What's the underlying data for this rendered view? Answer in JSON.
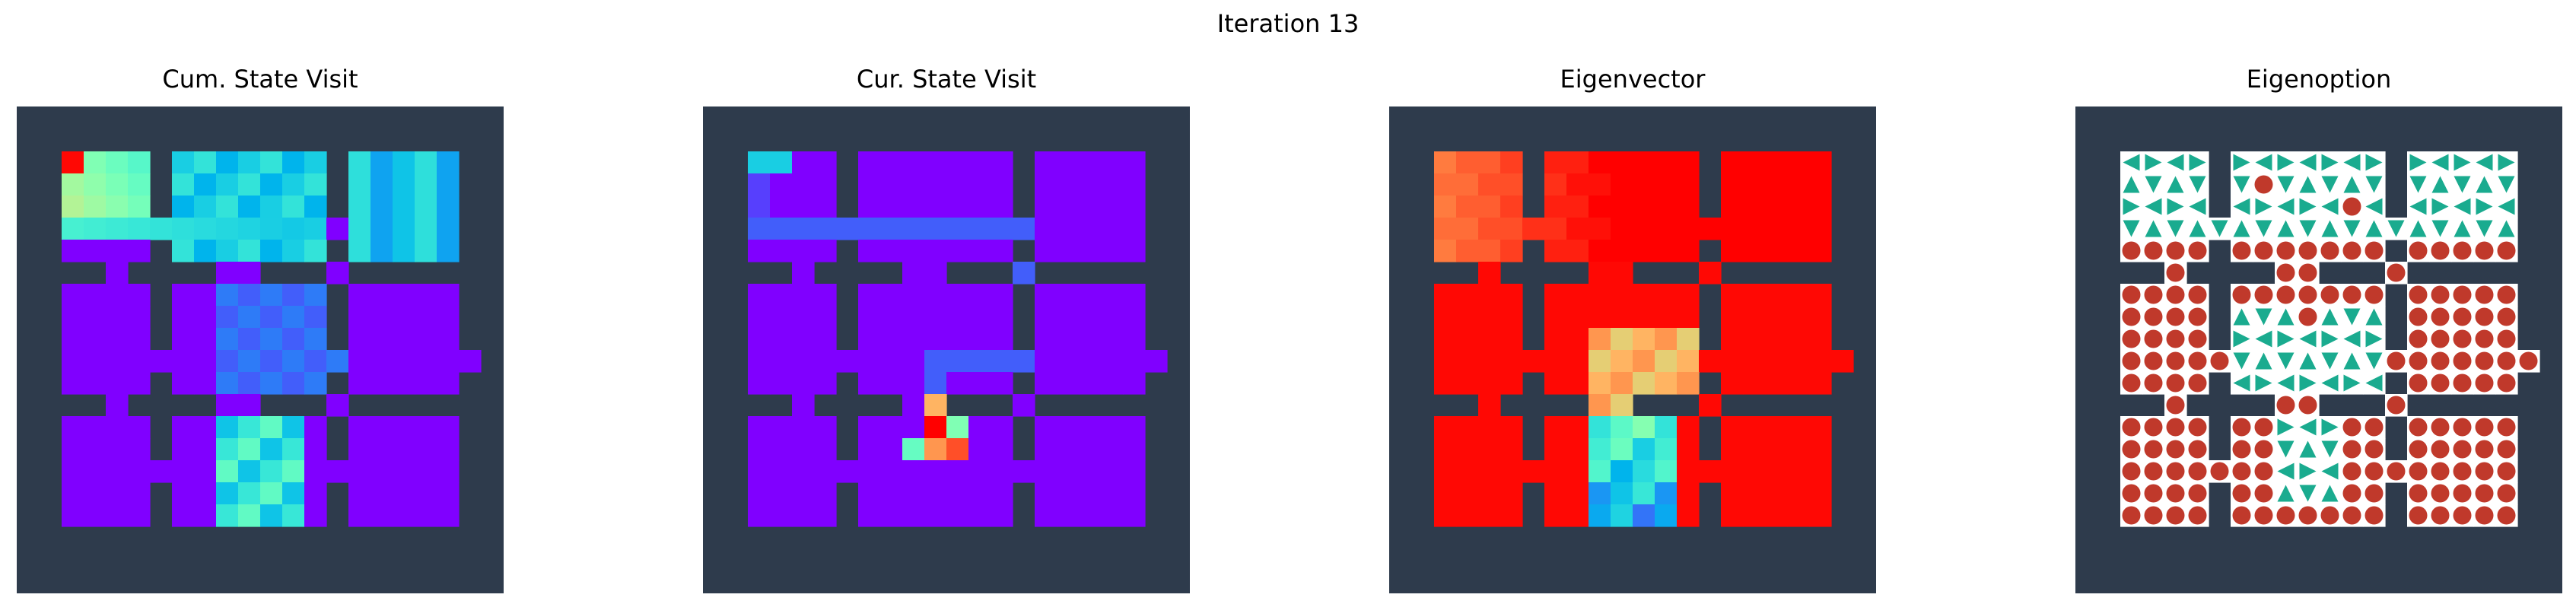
{
  "figure": {
    "suptitle": "Iteration 13",
    "wall_color": "#2e3b4c",
    "panels": [
      {
        "title": "Cum. State Visit",
        "kind": "heatmap",
        "key": "cum"
      },
      {
        "title": "Cur. State Visit",
        "kind": "heatmap",
        "key": "cur"
      },
      {
        "title": "Eigenvector",
        "kind": "eigvec",
        "key": "eig"
      },
      {
        "title": "Eigenoption",
        "kind": "option",
        "key": "opt"
      }
    ],
    "option_colors": {
      "arrow": "#1aab8f",
      "terminate": "#c0392b",
      "background": "#ffffff"
    }
  },
  "chart_data": {
    "type": "heatmap",
    "grid_size": [
      20,
      20
    ],
    "colormap": "rainbow",
    "legend": "i,j encoded as row strings; '#' = wall, '.' = open cell",
    "maze": [
      "####################",
      "#....#.......#.....#",
      "#....#.......#.....#",
      "#....#.......#.....#",
      "#..................#",
      "#....#.......#.....#",
      "###.####..###.######",
      "#....#.......#.....#",
      "#....#.......#.....#",
      "#....#.......#.....#",
      "#...................",
      "#....#.......#.....#",
      "###.####..###.######",
      "#....#.......#.....#",
      "#....#.......#.....#",
      "#..................#",
      "#....#.......#.....#",
      "#....#.......#.....#",
      "####################",
      "####################"
    ],
    "cum_visits_hot_cells": [
      {
        "r": 1,
        "c": 1,
        "v": 1.0
      },
      {
        "r": 1,
        "c": 2,
        "v": 0.45
      },
      {
        "r": 1,
        "c": 3,
        "v": 0.35
      },
      {
        "r": 1,
        "c": 4,
        "v": 0.3
      },
      {
        "r": 2,
        "c": 1,
        "v": 0.65
      },
      {
        "r": 2,
        "c": 2,
        "v": 0.45
      },
      {
        "r": 2,
        "c": 3,
        "v": 0.38
      },
      {
        "r": 2,
        "c": 4,
        "v": 0.35
      },
      {
        "r": 3,
        "c": 1,
        "v": 0.55
      },
      {
        "r": 3,
        "c": 2,
        "v": 0.5
      },
      {
        "r": 3,
        "c": 3,
        "v": 0.42
      },
      {
        "r": 3,
        "c": 4,
        "v": 0.3
      }
    ],
    "cur_visits_peak": {
      "r": 13,
      "c": 9,
      "v": 1.0
    },
    "eigenvector_range": [
      0.0,
      1.0
    ]
  }
}
